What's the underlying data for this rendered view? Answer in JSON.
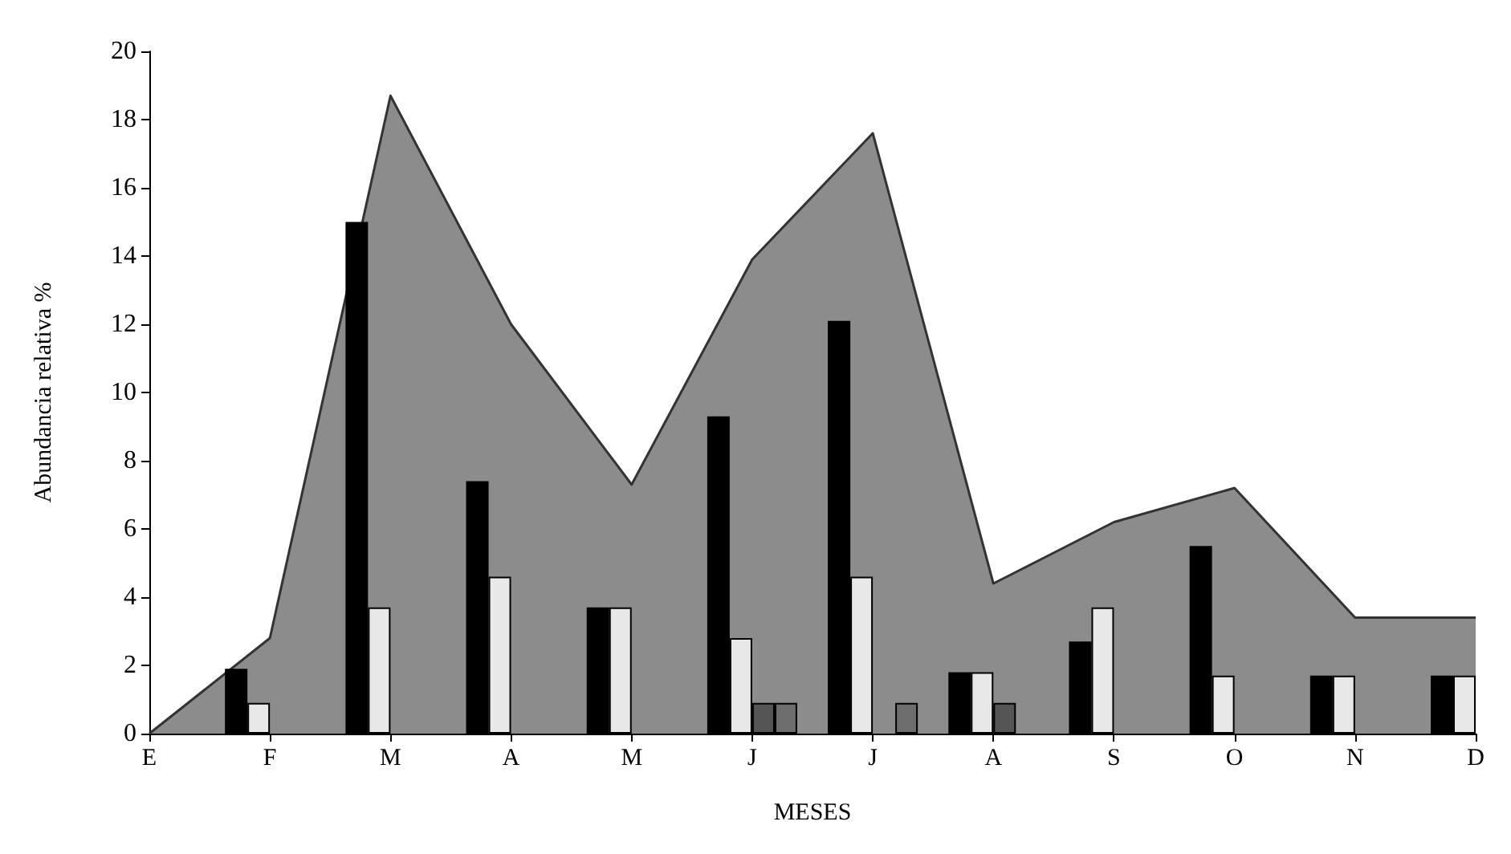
{
  "chart_data": {
    "type": "bar",
    "xlabel": "MESES",
    "ylabel": "Abundancia relativa %",
    "categories": [
      "E",
      "F",
      "M",
      "A",
      "M",
      "J",
      "J",
      "A",
      "S",
      "O",
      "N",
      "D"
    ],
    "series": [
      {
        "type": "area",
        "color": "#8c8c8c",
        "values": [
          0,
          2.8,
          18.7,
          12,
          7.3,
          13.9,
          17.6,
          4.4,
          6.2,
          7.2,
          3.4,
          3.4
        ]
      },
      {
        "color": "#000000",
        "values": [
          null,
          1.9,
          15,
          7.4,
          3.7,
          9.3,
          12.1,
          1.8,
          2.7,
          5.5,
          1.7,
          1.7
        ]
      },
      {
        "color": "#e8e8e8",
        "values": [
          null,
          0.9,
          3.7,
          4.6,
          3.7,
          2.8,
          4.6,
          1.8,
          3.7,
          1.7,
          1.7,
          1.7
        ]
      },
      {
        "color": "#555555",
        "values": [
          null,
          null,
          null,
          null,
          null,
          0.9,
          null,
          0.9,
          null,
          null,
          null,
          null
        ]
      },
      {
        "color": "#6e6e6e",
        "values": [
          null,
          null,
          null,
          null,
          null,
          0.9,
          0.9,
          null,
          null,
          null,
          null,
          null
        ]
      }
    ],
    "ylim": [
      0,
      20
    ],
    "yticks": [
      0,
      2,
      4,
      6,
      8,
      10,
      12,
      14,
      16,
      18,
      20
    ],
    "grid": false
  }
}
